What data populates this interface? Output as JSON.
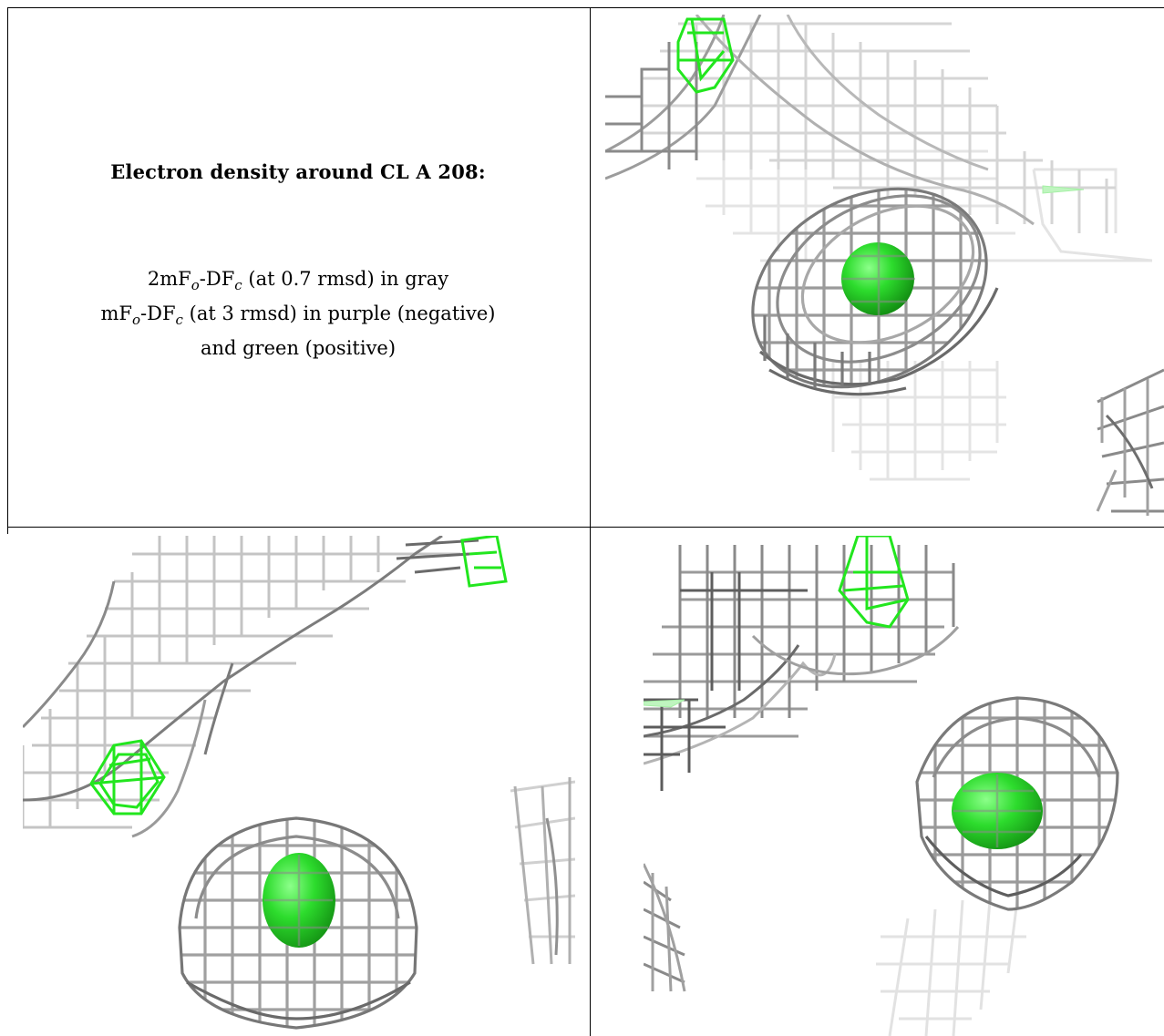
{
  "caption": {
    "title": "Electron density around CL A 208:",
    "line1_prefix": "2mF",
    "line1_sub1": "o",
    "line1_mid": "-DF",
    "line1_sub2": "c",
    "line1_suffix": " (at 0.7 rmsd) in gray",
    "line2_prefix": "mF",
    "line2_sub1": "o",
    "line2_mid": "-DF",
    "line2_sub2": "c",
    "line2_suffix": " (at 3 rmsd) in purple (negative)",
    "line3": "and green (positive)"
  },
  "colors": {
    "mesh_dark": "#6e6e6e",
    "mesh_mid": "#9a9a9a",
    "mesh_light": "#c8c8c8",
    "mesh_faint": "#e2e2e2",
    "positive_green": "#22e61e",
    "sphere_green": "#2ddc2d"
  },
  "panels": [
    {
      "name": "view-top-right",
      "content": "chloride-ion-density-view"
    },
    {
      "name": "view-bottom-left",
      "content": "chloride-ion-density-view"
    },
    {
      "name": "view-bottom-right",
      "content": "chloride-ion-density-view"
    }
  ]
}
